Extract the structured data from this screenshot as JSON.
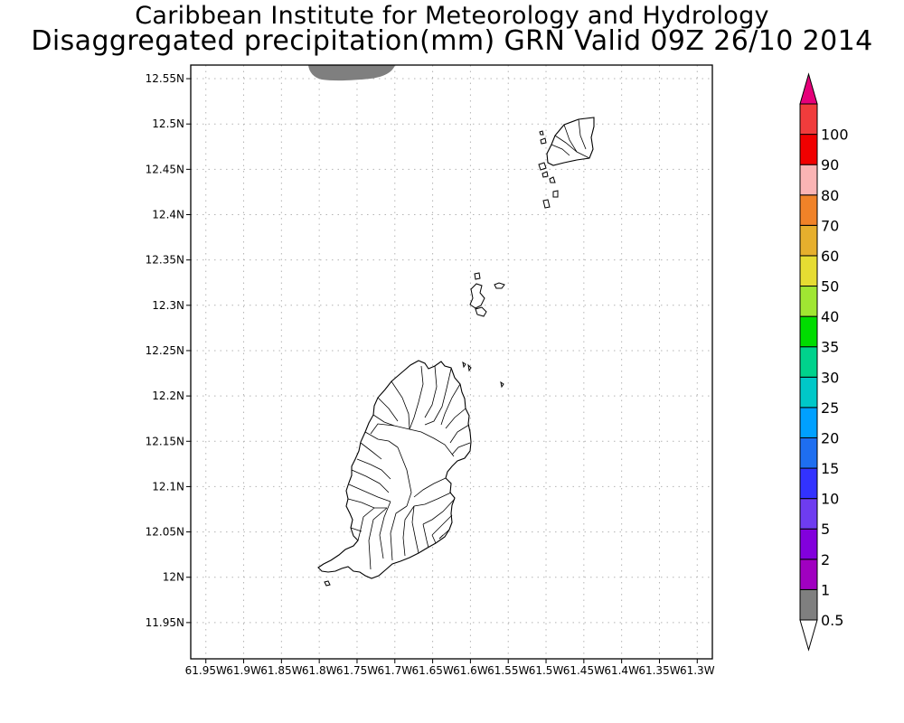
{
  "title": "Caribbean Institute for Meteorology and Hydrology",
  "subtitle": "Disaggregated precipitation(mm) GRN Valid 09Z 26/10 2014",
  "map": {
    "lon_range": [
      -61.97,
      -61.28
    ],
    "lat_range": [
      11.91,
      12.565
    ],
    "lon_ticks": [
      {
        "value": -61.95,
        "label": "61.95W"
      },
      {
        "value": -61.9,
        "label": "61.9W"
      },
      {
        "value": -61.85,
        "label": "61.85W"
      },
      {
        "value": -61.8,
        "label": "61.8W"
      },
      {
        "value": -61.75,
        "label": "61.75W"
      },
      {
        "value": -61.7,
        "label": "61.7W"
      },
      {
        "value": -61.65,
        "label": "61.65W"
      },
      {
        "value": -61.6,
        "label": "61.6W"
      },
      {
        "value": -61.55,
        "label": "61.55W"
      },
      {
        "value": -61.5,
        "label": "61.5W"
      },
      {
        "value": -61.45,
        "label": "61.45W"
      },
      {
        "value": -61.4,
        "label": "61.4W"
      },
      {
        "value": -61.35,
        "label": "61.35W"
      },
      {
        "value": -61.3,
        "label": "61.3W"
      }
    ],
    "lat_ticks": [
      {
        "value": 12.55,
        "label": "12.55N"
      },
      {
        "value": 12.5,
        "label": "12.5N"
      },
      {
        "value": 12.45,
        "label": "12.45N"
      },
      {
        "value": 12.4,
        "label": "12.4N"
      },
      {
        "value": 12.35,
        "label": "12.35N"
      },
      {
        "value": 12.3,
        "label": "12.3N"
      },
      {
        "value": 12.25,
        "label": "12.25N"
      },
      {
        "value": 12.2,
        "label": "12.2N"
      },
      {
        "value": 12.15,
        "label": "12.15N"
      },
      {
        "value": 12.1,
        "label": "12.1N"
      },
      {
        "value": 12.05,
        "label": "12.05N"
      },
      {
        "value": 12.0,
        "label": "12N"
      },
      {
        "value": 11.95,
        "label": "11.95N"
      }
    ],
    "precip_area": {
      "min_mm": 0.5,
      "max_mm": 1,
      "color": "#7f7f7f",
      "location": "top edge near 61.72W-61.82W, 12.55N"
    }
  },
  "colorbar": {
    "levels": [
      "0.5",
      "1",
      "2",
      "5",
      "10",
      "15",
      "20",
      "25",
      "30",
      "35",
      "40",
      "50",
      "60",
      "70",
      "80",
      "90",
      "100"
    ],
    "colors": [
      "#7f7f7f",
      "#a000c0",
      "#8200dc",
      "#6e3cf0",
      "#3232ff",
      "#1e6ef0",
      "#00a0ff",
      "#00c8c8",
      "#00d28c",
      "#00dc00",
      "#a0e632",
      "#e6dc32",
      "#e6af2d",
      "#f08228",
      "#fab4b4",
      "#f00000",
      "#f03c3c"
    ],
    "over_color": "#e6007a",
    "under_color": "#ffffff"
  }
}
